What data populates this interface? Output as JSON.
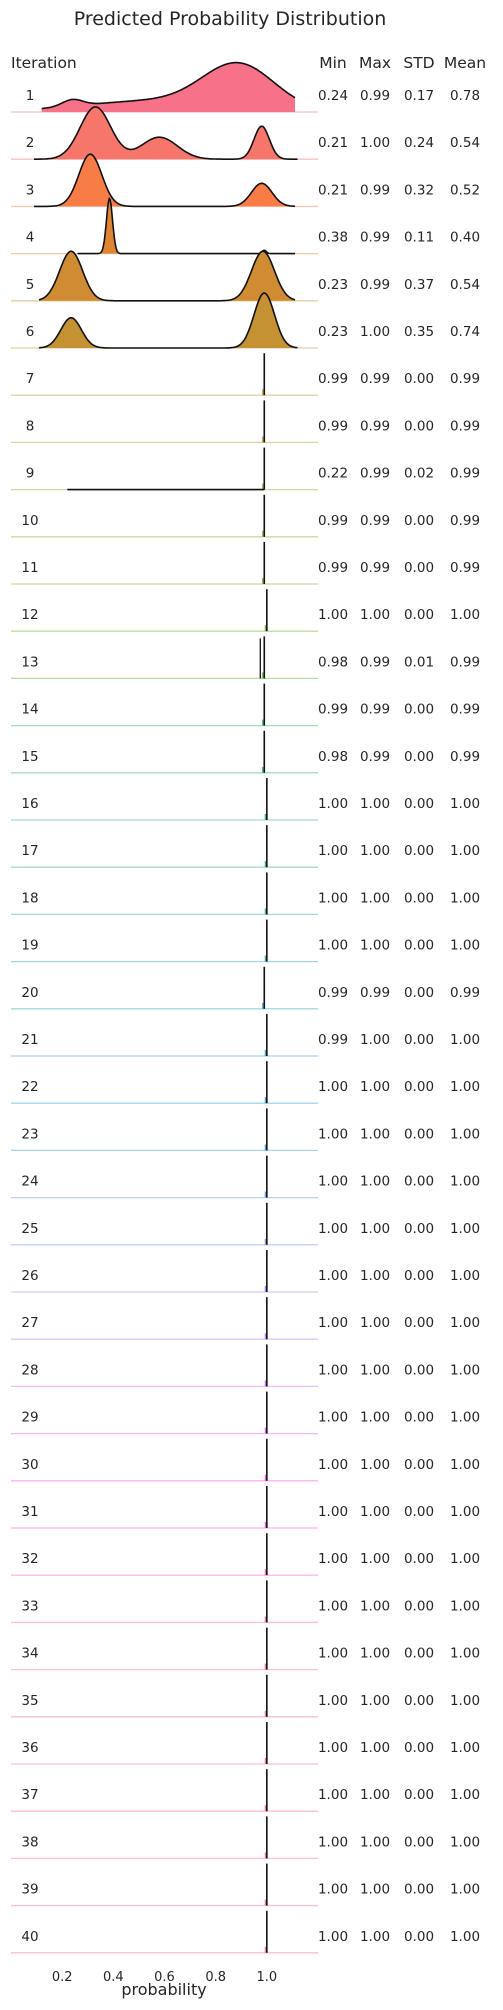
{
  "chart_data": {
    "type": "ridgeline",
    "title": "Predicted Probability Distribution",
    "xlabel": "probability",
    "row_header": "Iteration",
    "stat_headers": [
      "Min",
      "Max",
      "STD",
      "Mean"
    ],
    "x_ticks": [
      "0.2",
      "0.4",
      "0.6",
      "0.8",
      "1.0"
    ],
    "x_tick_values": [
      0.2,
      0.4,
      0.6,
      0.8,
      1.0
    ],
    "xlim": [
      0.0,
      1.2
    ],
    "colors": [
      "#f77189",
      "#f7766b",
      "#f77c45",
      "#dd8532",
      "#d08c32",
      "#c49232",
      "#b99732",
      "#ae9c31",
      "#a4a031",
      "#97a431",
      "#88a931",
      "#77ad31",
      "#5db231",
      "#33b059",
      "#34ae75",
      "#35ac87",
      "#36ab95",
      "#36a9a1",
      "#37a7ab",
      "#38a6b5",
      "#39a4bf",
      "#3aa1cb",
      "#3d9ed9",
      "#5b97f3",
      "#838ff4",
      "#9e86f4",
      "#b47df4",
      "#c76ff4",
      "#db5ef4",
      "#f152ec",
      "#f45ad6",
      "#f563c2",
      "#f569b0",
      "#f66d9f"
    ],
    "iterations": [
      {
        "label": "1",
        "min": "0.24",
        "max": "0.99",
        "std": "0.17",
        "mean": "0.78",
        "dist": [
          [
            0.24,
            0.04,
            0.12
          ],
          [
            0.55,
            0.28,
            0.2
          ],
          [
            0.89,
            0.14,
            0.8
          ]
        ]
      },
      {
        "label": "2",
        "min": "0.21",
        "max": "1.00",
        "std": "0.24",
        "mean": "0.54",
        "dist": [
          [
            0.33,
            0.06,
            0.95
          ],
          [
            0.58,
            0.07,
            0.4
          ],
          [
            0.98,
            0.03,
            0.6
          ]
        ]
      },
      {
        "label": "3",
        "min": "0.21",
        "max": "0.99",
        "std": "0.32",
        "mean": "0.52",
        "dist": [
          [
            0.31,
            0.045,
            0.95
          ],
          [
            0.98,
            0.04,
            0.42
          ]
        ]
      },
      {
        "label": "4",
        "min": "0.38",
        "max": "0.99",
        "std": "0.11",
        "mean": "0.40",
        "dist": [
          [
            0.385,
            0.012,
            1.0
          ],
          [
            0.99,
            0.008,
            0.06
          ]
        ]
      },
      {
        "label": "5",
        "min": "0.23",
        "max": "0.99",
        "std": "0.37",
        "mean": "0.54",
        "dist": [
          [
            0.235,
            0.045,
            0.9
          ],
          [
            0.985,
            0.045,
            0.9
          ]
        ]
      },
      {
        "label": "6",
        "min": "0.23",
        "max": "1.00",
        "std": "0.35",
        "mean": "0.74",
        "dist": [
          [
            0.235,
            0.04,
            0.55
          ],
          [
            0.99,
            0.04,
            1.0
          ]
        ]
      },
      {
        "label": "7",
        "min": "0.99",
        "max": "0.99",
        "std": "0.00",
        "mean": "0.99"
      },
      {
        "label": "8",
        "min": "0.99",
        "max": "0.99",
        "std": "0.00",
        "mean": "0.99"
      },
      {
        "label": "9",
        "min": "0.22",
        "max": "0.99",
        "std": "0.02",
        "mean": "0.99"
      },
      {
        "label": "10",
        "min": "0.99",
        "max": "0.99",
        "std": "0.00",
        "mean": "0.99"
      },
      {
        "label": "11",
        "min": "0.99",
        "max": "0.99",
        "std": "0.00",
        "mean": "0.99"
      },
      {
        "label": "12",
        "min": "1.00",
        "max": "1.00",
        "std": "0.00",
        "mean": "1.00"
      },
      {
        "label": "13",
        "min": "0.98",
        "max": "0.99",
        "std": "0.01",
        "mean": "0.99"
      },
      {
        "label": "14",
        "min": "0.99",
        "max": "0.99",
        "std": "0.00",
        "mean": "0.99"
      },
      {
        "label": "15",
        "min": "0.98",
        "max": "0.99",
        "std": "0.00",
        "mean": "0.99"
      },
      {
        "label": "16",
        "min": "1.00",
        "max": "1.00",
        "std": "0.00",
        "mean": "1.00"
      },
      {
        "label": "17",
        "min": "1.00",
        "max": "1.00",
        "std": "0.00",
        "mean": "1.00"
      },
      {
        "label": "18",
        "min": "1.00",
        "max": "1.00",
        "std": "0.00",
        "mean": "1.00"
      },
      {
        "label": "19",
        "min": "1.00",
        "max": "1.00",
        "std": "0.00",
        "mean": "1.00"
      },
      {
        "label": "20",
        "min": "0.99",
        "max": "0.99",
        "std": "0.00",
        "mean": "0.99"
      },
      {
        "label": "21",
        "min": "0.99",
        "max": "1.00",
        "std": "0.00",
        "mean": "1.00"
      },
      {
        "label": "22",
        "min": "1.00",
        "max": "1.00",
        "std": "0.00",
        "mean": "1.00"
      },
      {
        "label": "23",
        "min": "1.00",
        "max": "1.00",
        "std": "0.00",
        "mean": "1.00"
      },
      {
        "label": "24",
        "min": "1.00",
        "max": "1.00",
        "std": "0.00",
        "mean": "1.00"
      },
      {
        "label": "25",
        "min": "1.00",
        "max": "1.00",
        "std": "0.00",
        "mean": "1.00"
      },
      {
        "label": "26",
        "min": "1.00",
        "max": "1.00",
        "std": "0.00",
        "mean": "1.00"
      },
      {
        "label": "27",
        "min": "1.00",
        "max": "1.00",
        "std": "0.00",
        "mean": "1.00"
      },
      {
        "label": "28",
        "min": "1.00",
        "max": "1.00",
        "std": "0.00",
        "mean": "1.00"
      },
      {
        "label": "29",
        "min": "1.00",
        "max": "1.00",
        "std": "0.00",
        "mean": "1.00"
      },
      {
        "label": "30",
        "min": "1.00",
        "max": "1.00",
        "std": "0.00",
        "mean": "1.00"
      },
      {
        "label": "31",
        "min": "1.00",
        "max": "1.00",
        "std": "0.00",
        "mean": "1.00"
      },
      {
        "label": "32",
        "min": "1.00",
        "max": "1.00",
        "std": "0.00",
        "mean": "1.00"
      },
      {
        "label": "33",
        "min": "1.00",
        "max": "1.00",
        "std": "0.00",
        "mean": "1.00"
      },
      {
        "label": "34",
        "min": "1.00",
        "max": "1.00",
        "std": "0.00",
        "mean": "1.00"
      },
      {
        "label": "35",
        "min": "1.00",
        "max": "1.00",
        "std": "0.00",
        "mean": "1.00"
      },
      {
        "label": "36",
        "min": "1.00",
        "max": "1.00",
        "std": "0.00",
        "mean": "1.00"
      },
      {
        "label": "37",
        "min": "1.00",
        "max": "1.00",
        "std": "0.00",
        "mean": "1.00"
      },
      {
        "label": "38",
        "min": "1.00",
        "max": "1.00",
        "std": "0.00",
        "mean": "1.00"
      },
      {
        "label": "39",
        "min": "1.00",
        "max": "1.00",
        "std": "0.00",
        "mean": "1.00"
      },
      {
        "label": "40",
        "min": "1.00",
        "max": "1.00",
        "std": "0.00",
        "mean": "1.00"
      }
    ]
  }
}
